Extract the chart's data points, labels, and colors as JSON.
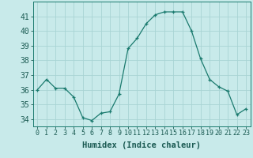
{
  "x": [
    0,
    1,
    2,
    3,
    4,
    5,
    6,
    7,
    8,
    9,
    10,
    11,
    12,
    13,
    14,
    15,
    16,
    17,
    18,
    19,
    20,
    21,
    22,
    23
  ],
  "y": [
    36.0,
    36.7,
    36.1,
    36.1,
    35.5,
    34.1,
    33.9,
    34.4,
    34.5,
    35.7,
    38.8,
    39.5,
    40.5,
    41.1,
    41.3,
    41.3,
    41.3,
    40.0,
    38.1,
    36.7,
    36.2,
    35.9,
    34.3,
    34.7
  ],
  "ylim": [
    33.5,
    42.0
  ],
  "yticks": [
    34,
    35,
    36,
    37,
    38,
    39,
    40,
    41
  ],
  "xticks": [
    0,
    1,
    2,
    3,
    4,
    5,
    6,
    7,
    8,
    9,
    10,
    11,
    12,
    13,
    14,
    15,
    16,
    17,
    18,
    19,
    20,
    21,
    22,
    23
  ],
  "xlabel": "Humidex (Indice chaleur)",
  "line_color": "#1a7a6e",
  "marker": "+",
  "bg_color": "#c8eaea",
  "grid_color": "#a8d4d4",
  "axis_color": "#1a7a6e",
  "tick_color": "#1a5a52",
  "xlabel_fontsize": 7.5,
  "ytick_fontsize": 7,
  "xtick_fontsize": 6
}
